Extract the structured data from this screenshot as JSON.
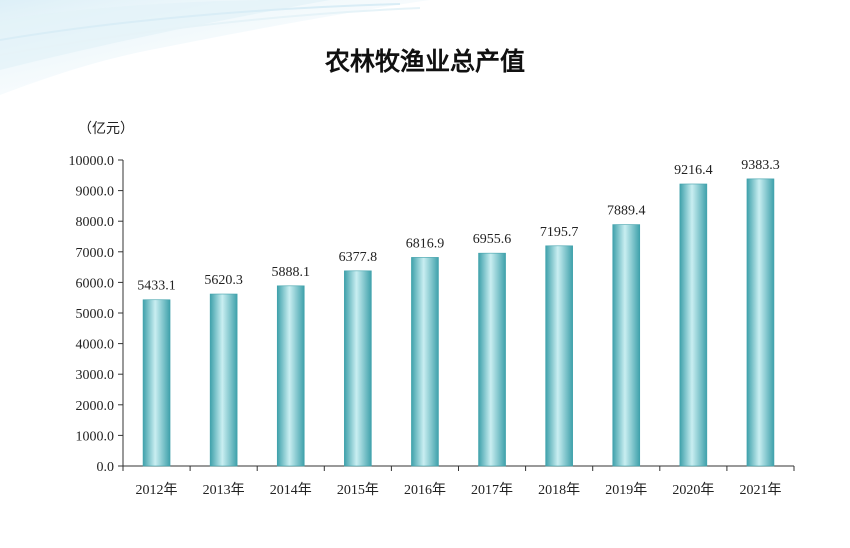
{
  "colors": {
    "bar_light": "#c9eef1",
    "bar_mid": "#7ccdd3",
    "bar_dark": "#3fa1ab",
    "axis": "#333333",
    "wave_top": "#d4ecf5"
  },
  "chart_data": {
    "type": "bar",
    "title": "农林牧渔业总产值",
    "unit_label": "（亿元）",
    "categories": [
      "2012年",
      "2013年",
      "2014年",
      "2015年",
      "2016年",
      "2017年",
      "2018年",
      "2019年",
      "2020年",
      "2021年"
    ],
    "values": [
      5433.1,
      5620.3,
      5888.1,
      6377.8,
      6816.9,
      6955.6,
      7195.7,
      7889.4,
      9216.4,
      9383.3
    ],
    "value_labels": [
      "5433.1",
      "5620.3",
      "5888.1",
      "6377.8",
      "6816.9",
      "6955.6",
      "7195.7",
      "7889.4",
      "9216.4",
      "9383.3"
    ],
    "ylim": [
      0,
      10000
    ],
    "yticks": [
      "0.0",
      "1000.0",
      "2000.0",
      "3000.0",
      "4000.0",
      "5000.0",
      "6000.0",
      "7000.0",
      "8000.0",
      "9000.0",
      "10000.0"
    ],
    "ytick_values": [
      0,
      1000,
      2000,
      3000,
      4000,
      5000,
      6000,
      7000,
      8000,
      9000,
      10000
    ],
    "grid": false,
    "legend": "none"
  }
}
